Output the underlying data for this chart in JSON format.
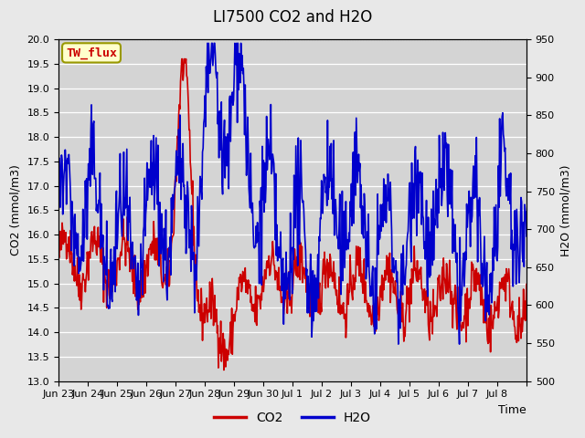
{
  "title": "LI7500 CO2 and H2O",
  "xlabel": "Time",
  "ylabel_left": "CO2 (mmol/m3)",
  "ylabel_right": "H2O (mmol/m3)",
  "ylim_left": [
    13.0,
    20.0
  ],
  "ylim_right": [
    500,
    950
  ],
  "co2_color": "#cc0000",
  "h2o_color": "#0000cc",
  "bg_color": "#e8e8e8",
  "plot_bg_color": "#d4d4d4",
  "annotation_text": "TW_flux",
  "annotation_bg": "#ffffcc",
  "annotation_border": "#999900",
  "annotation_text_color": "#cc0000",
  "legend_labels": [
    "CO2",
    "H2O"
  ],
  "x_tick_positions": [
    0,
    1,
    2,
    3,
    4,
    5,
    6,
    7,
    8,
    9,
    10,
    11,
    12,
    13,
    14,
    15,
    16
  ],
  "x_tick_labels": [
    "Jun 23",
    "Jun 24",
    "Jun 25",
    "Jun 26",
    "Jun 27",
    "Jun 28",
    "Jun 29",
    "Jun 30",
    "Jul 1",
    "Jul 2",
    "Jul 3",
    "Jul 4",
    "Jul 5",
    "Jul 6",
    "Jul 7",
    "Jul 8",
    ""
  ],
  "yticks_left": [
    13.0,
    13.5,
    14.0,
    14.5,
    15.0,
    15.5,
    16.0,
    16.5,
    17.0,
    17.5,
    18.0,
    18.5,
    19.0,
    19.5,
    20.0
  ],
  "yticks_right": [
    500,
    550,
    600,
    650,
    700,
    750,
    800,
    850,
    900,
    950
  ],
  "title_fontsize": 12,
  "axis_label_fontsize": 9,
  "tick_fontsize": 8,
  "legend_fontsize": 10,
  "line_width": 1.2,
  "xlim": [
    0,
    16
  ]
}
